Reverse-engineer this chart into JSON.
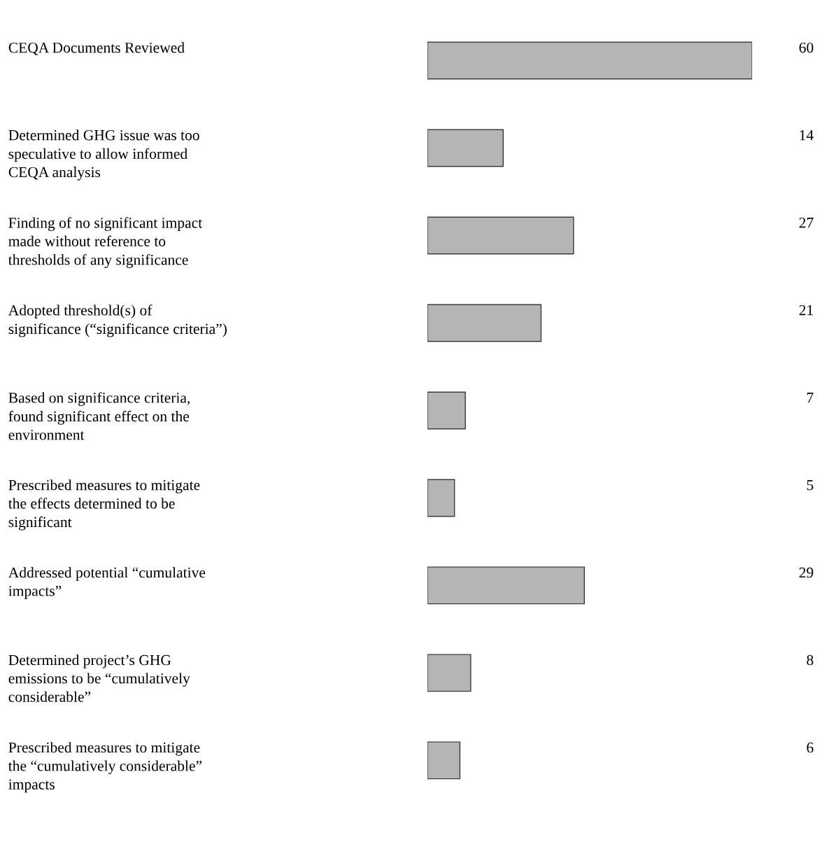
{
  "chart_data": {
    "type": "bar",
    "orientation": "horizontal",
    "data_labels": true,
    "color": "#b5b5b5",
    "categories": [
      "CEQA Documents Reviewed",
      "Determined GHG issue was too\nspeculative to allow informed\nCEQA analysis",
      "Finding of no significant impact\nmade without reference to\nthresholds of any significance",
      "Adopted threshold(s) of\nsignificance (“significance criteria”)",
      "Based on significance criteria,\nfound significant effect on the\nenvironment",
      "Prescribed measures to mitigate\nthe effects determined to be\nsignificant",
      "Addressed potential “cumulative\nimpacts”",
      "Determined project’s GHG\nemissions to be “cumulatively\nconsiderable”",
      "Prescribed measures to mitigate\nthe “cumulatively considerable”\nimpacts"
    ],
    "values": [
      60,
      14,
      27,
      21,
      7,
      5,
      29,
      8,
      6
    ]
  }
}
